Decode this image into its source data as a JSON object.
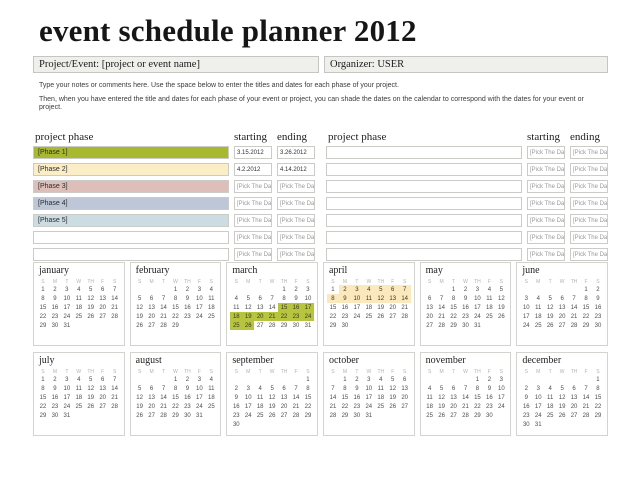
{
  "title": "event schedule planner 2012",
  "header": {
    "project_event": "Project/Event: [project or event name]",
    "organizer": "Organizer: USER"
  },
  "notes": {
    "line1": "Type your notes or comments here. Use the space below to enter the titles and dates for each phase of your project.",
    "line2": "Then, when you have entered the title and dates for each phase of your event or project, you can shade the dates on the calendar to correspond with the dates for your event or project."
  },
  "colors": {
    "phase1": "#a9b92f",
    "phase2": "#fbeec6",
    "phase3": "#ddbeb8",
    "phase4": "#bdc7d8",
    "phase5": "#ccdce3",
    "cal_highlight_green": "#b7c440",
    "cal_highlight_cream": "#fbe9bd"
  },
  "phase_tables": [
    {
      "headers": {
        "phase": "project phase",
        "starting": "starting",
        "ending": "ending"
      },
      "rows": [
        {
          "phase": "[Phase 1]",
          "color_key": "phase1",
          "starting": "3.15.2012",
          "ending": "3.26.2012"
        },
        {
          "phase": "[Phase 2]",
          "color_key": "phase2",
          "starting": "4.2.2012",
          "ending": "4.14.2012"
        },
        {
          "phase": "[Phase 3]",
          "color_key": "phase3",
          "starting": "[Pick The Date]",
          "ending": "[Pick The Date]"
        },
        {
          "phase": "[Phase 4]",
          "color_key": "phase4",
          "starting": "[Pick The Date]",
          "ending": "[Pick The Date]"
        },
        {
          "phase": "[Phase 5]",
          "color_key": "phase5",
          "starting": "[Pick The Date]",
          "ending": "[Pick The Date]"
        },
        {
          "phase": "",
          "color_key": null,
          "starting": "[Pick The Date]",
          "ending": "[Pick The Date]"
        },
        {
          "phase": "",
          "color_key": null,
          "starting": "[Pick The Date]",
          "ending": "[Pick The Date]"
        }
      ]
    },
    {
      "headers": {
        "phase": "project phase",
        "starting": "starting",
        "ending": "ending"
      },
      "rows": [
        {
          "phase": "",
          "color_key": null,
          "starting": "[Pick The Date]",
          "ending": "[Pick The Date]"
        },
        {
          "phase": "",
          "color_key": null,
          "starting": "[Pick The Date]",
          "ending": "[Pick The Date]"
        },
        {
          "phase": "",
          "color_key": null,
          "starting": "[Pick The Date]",
          "ending": "[Pick The Date]"
        },
        {
          "phase": "",
          "color_key": null,
          "starting": "[Pick The Date]",
          "ending": "[Pick The Date]"
        },
        {
          "phase": "",
          "color_key": null,
          "starting": "[Pick The Date]",
          "ending": "[Pick The Date]"
        },
        {
          "phase": "",
          "color_key": null,
          "starting": "[Pick The Date]",
          "ending": "[Pick The Date]"
        },
        {
          "phase": "",
          "color_key": null,
          "starting": "[Pick The Date]",
          "ending": "[Pick The Date]"
        }
      ]
    }
  ],
  "calendar": {
    "day_headers": [
      "S",
      "M",
      "T",
      "W",
      "TH",
      "F",
      "S"
    ],
    "months": [
      {
        "name": "january",
        "weeks": [
          [
            "1",
            "2",
            "3",
            "4",
            "5",
            "6",
            "7"
          ],
          [
            "8",
            "9",
            "10",
            "11",
            "12",
            "13",
            "14"
          ],
          [
            "15",
            "16",
            "17",
            "18",
            "19",
            "20",
            "21"
          ],
          [
            "22",
            "23",
            "24",
            "25",
            "26",
            "27",
            "28"
          ],
          [
            "29",
            "30",
            "31",
            "",
            "",
            "",
            ""
          ]
        ]
      },
      {
        "name": "february",
        "weeks": [
          [
            "",
            "",
            "",
            "1",
            "2",
            "3",
            "4"
          ],
          [
            "5",
            "6",
            "7",
            "8",
            "9",
            "10",
            "11"
          ],
          [
            "12",
            "13",
            "14",
            "15",
            "16",
            "17",
            "18"
          ],
          [
            "19",
            "20",
            "21",
            "22",
            "23",
            "24",
            "25"
          ],
          [
            "26",
            "27",
            "28",
            "29",
            "",
            "",
            ""
          ]
        ]
      },
      {
        "name": "march",
        "weeks": [
          [
            "",
            "",
            "",
            "",
            "1",
            "2",
            "3"
          ],
          [
            "4",
            "5",
            "6",
            "7",
            "8",
            "9",
            "10"
          ],
          [
            "11",
            "12",
            "13",
            "14",
            "15",
            "16",
            "17"
          ],
          [
            "18",
            "19",
            "20",
            "21",
            "22",
            "23",
            "24"
          ],
          [
            "25",
            "26",
            "27",
            "28",
            "29",
            "30",
            "31"
          ]
        ],
        "highlight": {
          "color_key": "cal_highlight_green",
          "days": [
            15,
            16,
            17,
            18,
            19,
            20,
            21,
            22,
            23,
            24,
            25,
            26
          ]
        }
      },
      {
        "name": "april",
        "weeks": [
          [
            "1",
            "2",
            "3",
            "4",
            "5",
            "6",
            "7"
          ],
          [
            "8",
            "9",
            "10",
            "11",
            "12",
            "13",
            "14"
          ],
          [
            "15",
            "16",
            "17",
            "18",
            "19",
            "20",
            "21"
          ],
          [
            "22",
            "23",
            "24",
            "25",
            "26",
            "27",
            "28"
          ],
          [
            "29",
            "30",
            "",
            "",
            "",
            "",
            ""
          ]
        ],
        "highlight": {
          "color_key": "cal_highlight_cream",
          "days": [
            2,
            3,
            4,
            5,
            6,
            7,
            8,
            9,
            10,
            11,
            12,
            13,
            14
          ]
        }
      },
      {
        "name": "may",
        "weeks": [
          [
            "",
            "",
            "1",
            "2",
            "3",
            "4",
            "5"
          ],
          [
            "6",
            "7",
            "8",
            "9",
            "10",
            "11",
            "12"
          ],
          [
            "13",
            "14",
            "15",
            "16",
            "17",
            "18",
            "19"
          ],
          [
            "20",
            "21",
            "22",
            "23",
            "24",
            "25",
            "26"
          ],
          [
            "27",
            "28",
            "29",
            "30",
            "31",
            "",
            ""
          ]
        ]
      },
      {
        "name": "june",
        "weeks": [
          [
            "",
            "",
            "",
            "",
            "",
            "1",
            "2"
          ],
          [
            "3",
            "4",
            "5",
            "6",
            "7",
            "8",
            "9"
          ],
          [
            "10",
            "11",
            "12",
            "13",
            "14",
            "15",
            "16"
          ],
          [
            "17",
            "18",
            "19",
            "20",
            "21",
            "22",
            "23"
          ],
          [
            "24",
            "25",
            "26",
            "27",
            "28",
            "29",
            "30"
          ]
        ]
      },
      {
        "name": "july",
        "weeks": [
          [
            "1",
            "2",
            "3",
            "4",
            "5",
            "6",
            "7"
          ],
          [
            "8",
            "9",
            "10",
            "11",
            "12",
            "13",
            "14"
          ],
          [
            "15",
            "16",
            "17",
            "18",
            "19",
            "20",
            "21"
          ],
          [
            "22",
            "23",
            "24",
            "25",
            "26",
            "27",
            "28"
          ],
          [
            "29",
            "30",
            "31",
            "",
            "",
            "",
            ""
          ]
        ]
      },
      {
        "name": "august",
        "weeks": [
          [
            "",
            "",
            "",
            "1",
            "2",
            "3",
            "4"
          ],
          [
            "5",
            "6",
            "7",
            "8",
            "9",
            "10",
            "11"
          ],
          [
            "12",
            "13",
            "14",
            "15",
            "16",
            "17",
            "18"
          ],
          [
            "19",
            "20",
            "21",
            "22",
            "23",
            "24",
            "25"
          ],
          [
            "26",
            "27",
            "28",
            "29",
            "30",
            "31",
            ""
          ]
        ]
      },
      {
        "name": "september",
        "weeks": [
          [
            "",
            "",
            "",
            "",
            "",
            "",
            "1"
          ],
          [
            "2",
            "3",
            "4",
            "5",
            "6",
            "7",
            "8"
          ],
          [
            "9",
            "10",
            "11",
            "12",
            "13",
            "14",
            "15"
          ],
          [
            "16",
            "17",
            "18",
            "19",
            "20",
            "21",
            "22"
          ],
          [
            "23",
            "24",
            "25",
            "26",
            "27",
            "28",
            "29"
          ],
          [
            "30",
            "",
            "",
            "",
            "",
            "",
            ""
          ]
        ]
      },
      {
        "name": "october",
        "weeks": [
          [
            "",
            "1",
            "2",
            "3",
            "4",
            "5",
            "6"
          ],
          [
            "7",
            "8",
            "9",
            "10",
            "11",
            "12",
            "13"
          ],
          [
            "14",
            "15",
            "16",
            "17",
            "18",
            "19",
            "20"
          ],
          [
            "21",
            "22",
            "23",
            "24",
            "25",
            "26",
            "27"
          ],
          [
            "28",
            "29",
            "30",
            "31",
            "",
            "",
            ""
          ]
        ]
      },
      {
        "name": "november",
        "weeks": [
          [
            "",
            "",
            "",
            "",
            "1",
            "2",
            "3"
          ],
          [
            "4",
            "5",
            "6",
            "7",
            "8",
            "9",
            "10"
          ],
          [
            "11",
            "12",
            "13",
            "14",
            "15",
            "16",
            "17"
          ],
          [
            "18",
            "19",
            "20",
            "21",
            "22",
            "23",
            "24"
          ],
          [
            "25",
            "26",
            "27",
            "28",
            "29",
            "30",
            ""
          ]
        ]
      },
      {
        "name": "december",
        "weeks": [
          [
            "",
            "",
            "",
            "",
            "",
            "",
            "1"
          ],
          [
            "2",
            "3",
            "4",
            "5",
            "6",
            "7",
            "8"
          ],
          [
            "9",
            "10",
            "11",
            "12",
            "13",
            "14",
            "15"
          ],
          [
            "16",
            "17",
            "18",
            "19",
            "20",
            "21",
            "22"
          ],
          [
            "23",
            "24",
            "25",
            "26",
            "27",
            "28",
            "29"
          ],
          [
            "30",
            "31",
            "",
            "",
            "",
            "",
            ""
          ]
        ]
      }
    ]
  }
}
